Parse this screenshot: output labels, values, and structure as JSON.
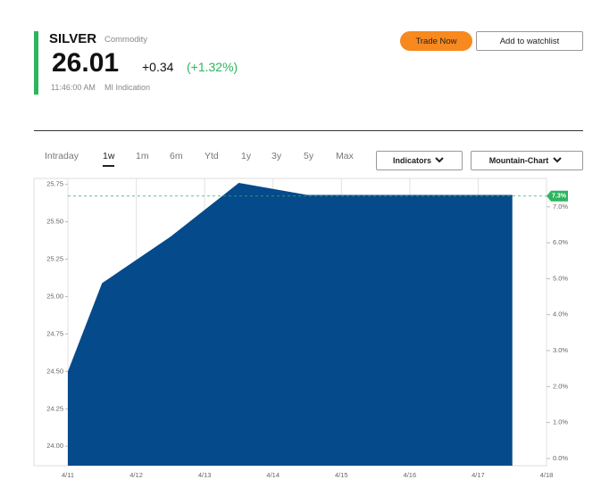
{
  "header": {
    "name": "SILVER",
    "category": "Commodity",
    "price": "26.01",
    "change": "+0.34",
    "change_pct": "(+1.32%)",
    "time": "11:46:00 AM",
    "source": "MI Indication"
  },
  "buttons": {
    "trade": "Trade Now",
    "watchlist": "Add to watchlist"
  },
  "tabs": [
    "Intraday",
    "1w",
    "1m",
    "6m",
    "Ytd",
    "1y",
    "3y",
    "5y",
    "Max"
  ],
  "active_tab": "1w",
  "dropdowns": [
    "Indicators",
    "Mountain-Chart"
  ],
  "chart_data": {
    "type": "area",
    "color": "#054a8a",
    "x": [
      11,
      11.5,
      12.5,
      13.5,
      14.5,
      17.5
    ],
    "values": [
      24.5,
      25.09,
      25.4,
      25.76,
      25.68,
      25.68
    ],
    "xlim": [
      11,
      18
    ],
    "xticks": [
      {
        "value": 11,
        "label": "4/11"
      },
      {
        "value": 12,
        "label": "4/12"
      },
      {
        "value": 13,
        "label": "4/13"
      },
      {
        "value": 14,
        "label": "4/14"
      },
      {
        "value": 15,
        "label": "4/15"
      },
      {
        "value": 16,
        "label": "4/16"
      },
      {
        "value": 17,
        "label": "4/17"
      },
      {
        "value": 18,
        "label": "4/18"
      }
    ],
    "ylim": [
      23.87,
      25.79
    ],
    "yticks": [
      {
        "value": 24,
        "label": "24.00"
      },
      24.25,
      {
        "value": 24.5,
        "label": "24.50"
      },
      24.75,
      {
        "value": 25,
        "label": "25.00"
      },
      25.25,
      {
        "value": 25.5,
        "label": "25.50"
      },
      25.75
    ],
    "y2lim": [
      -0.2,
      7.79
    ],
    "y2ticks": [
      {
        "value": 0,
        "label": "0.0%"
      },
      {
        "value": 1,
        "label": "1.0%"
      },
      {
        "value": 2,
        "label": "2.0%"
      },
      {
        "value": 3,
        "label": "3.0%"
      },
      {
        "value": 4,
        "label": "4.0%"
      },
      {
        "value": 5,
        "label": "5.0%"
      },
      {
        "value": 6,
        "label": "6.0%"
      },
      {
        "value": 7,
        "label": "7.0%"
      }
    ],
    "annotation": {
      "value": 7.3,
      "label": "7.3%",
      "color": "#2db55d"
    },
    "grid": true
  }
}
